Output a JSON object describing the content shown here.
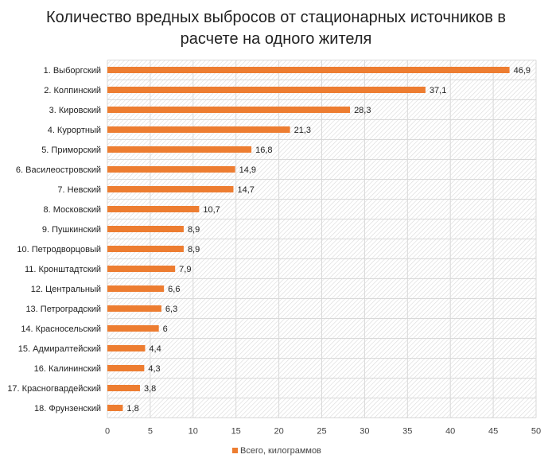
{
  "chart_data": {
    "type": "bar",
    "orientation": "horizontal",
    "title_lines": [
      "Количество вредных выбросов от стационарных источников в",
      "расчете на одного жителя"
    ],
    "categories": [
      "1. Выборгский",
      "2. Колпинский",
      "3. Кировский",
      "4. Курортный",
      "5. Приморский",
      "6. Василеостровский",
      "7. Невский",
      "8. Московский",
      "9. Пушкинский",
      "10. Петродворцовый",
      "11. Кронштадтский",
      "12. Центральный",
      "13. Петроградский",
      "14. Красносельский",
      "15. Адмиралтейский",
      "16. Калининский",
      "17. Красногвардейский",
      "18. Фрунзенский"
    ],
    "series": [
      {
        "name": "Всего, килограммов",
        "values": [
          46.9,
          37.1,
          28.3,
          21.3,
          16.8,
          14.9,
          14.7,
          10.7,
          8.9,
          8.9,
          7.9,
          6.6,
          6.3,
          6,
          4.4,
          4.3,
          3.8,
          1.8
        ],
        "color": "#ED7D31"
      }
    ],
    "data_labels": [
      "46,9",
      "37,1",
      "28,3",
      "21,3",
      "16,8",
      "14,9",
      "14,7",
      "10,7",
      "8,9",
      "8,9",
      "7,9",
      "6,6",
      "6,3",
      "6",
      "4,4",
      "4,3",
      "3,8",
      "1,8"
    ],
    "xlim": [
      0,
      50
    ],
    "xticks": [
      "0",
      "5",
      "10",
      "15",
      "20",
      "25",
      "30",
      "35",
      "40",
      "45",
      "50"
    ],
    "grid": true,
    "legend_position": "bottom"
  }
}
